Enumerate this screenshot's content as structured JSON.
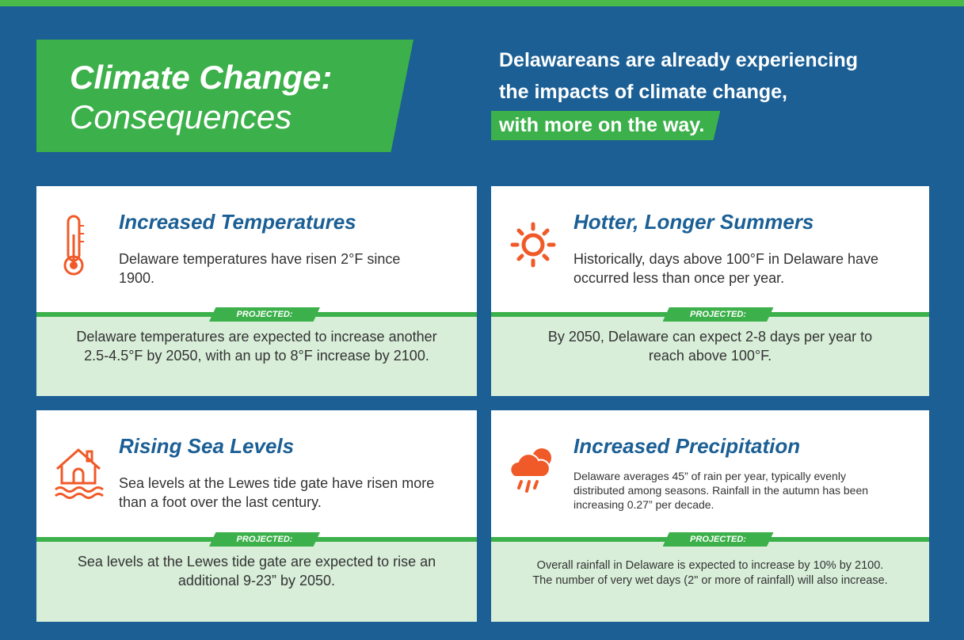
{
  "header": {
    "title_line1": "Climate Change:",
    "title_line2": "Consequences",
    "subtitle_lines": [
      "Delawareans are already experiencing",
      "the impacts of climate change,",
      "with more on the way."
    ]
  },
  "cards": [
    {
      "title": "Increased Temperatures",
      "description": "Delaware temperatures have risen 2°F since 1900.",
      "projected_label": "PROJECTED:",
      "projection": "Delaware temperatures are expected to increase another 2.5-4.5°F by 2050, with an up to 8°F increase by 2100."
    },
    {
      "title": "Hotter, Longer Summers",
      "description": "Historically, days above 100°F in Delaware have occurred less than once per year.",
      "projected_label": "PROJECTED:",
      "projection": "By 2050, Delaware can expect 2-8 days per year to reach above 100°F."
    },
    {
      "title": "Rising Sea Levels",
      "description": "Sea levels at the Lewes tide gate have risen more than a foot over the last century.",
      "projected_label": "PROJECTED:",
      "projection": "Sea levels at the Lewes tide gate are expected to rise an additional 9-23” by 2050."
    },
    {
      "title": "Increased Precipitation",
      "description": "Delaware averages 45” of rain per year, typically evenly distributed among seasons. Rainfall in the autumn has been increasing 0.27” per decade.",
      "projected_label": "PROJECTED:",
      "projection": "Overall rainfall in Delaware is expected to increase by 10% by 2100. The number of very wet days (2\" or more of rainfall) will also increase."
    }
  ]
}
